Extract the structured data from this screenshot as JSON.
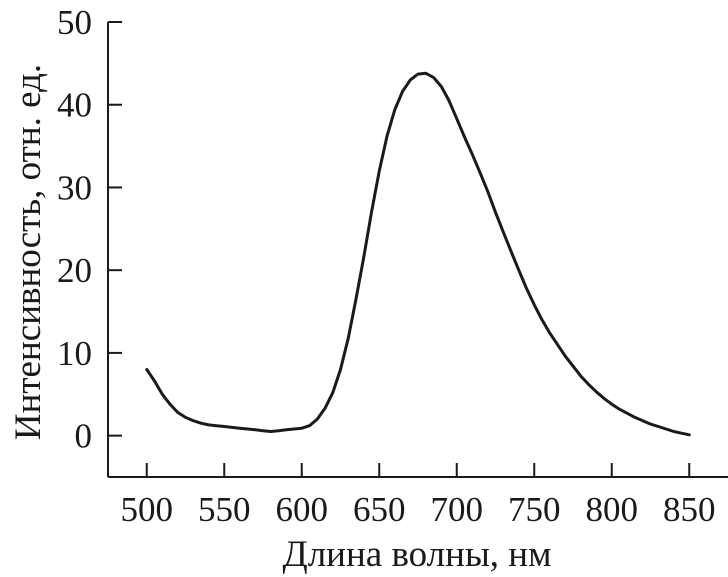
{
  "chart_data": {
    "type": "line",
    "title": "",
    "xlabel": "Длина волны, нм",
    "ylabel": "Интенсивность, отн. ед.",
    "xlim": [
      475,
      875
    ],
    "ylim": [
      -5,
      50
    ],
    "x_ticks": [
      500,
      550,
      600,
      650,
      700,
      750,
      800,
      850
    ],
    "y_ticks": [
      0,
      10,
      20,
      30,
      40,
      50
    ],
    "x_tick_labels": [
      "500",
      "550",
      "600",
      "650",
      "700",
      "750",
      "800",
      "850"
    ],
    "y_tick_labels": [
      "0",
      "10",
      "20",
      "30",
      "40",
      "50"
    ],
    "grid": false,
    "legend": "none",
    "colors": {
      "line": "#1a1a1a",
      "axis": "#1a1a1a"
    },
    "series": [
      {
        "x": [
          500,
          505,
          510,
          515,
          520,
          525,
          530,
          535,
          540,
          545,
          550,
          555,
          560,
          565,
          570,
          575,
          580,
          585,
          590,
          595,
          600,
          605,
          610,
          615,
          620,
          625,
          630,
          635,
          640,
          645,
          650,
          655,
          660,
          665,
          670,
          675,
          680,
          685,
          690,
          695,
          700,
          705,
          710,
          715,
          720,
          725,
          730,
          735,
          740,
          745,
          750,
          755,
          760,
          765,
          770,
          775,
          780,
          785,
          790,
          795,
          800,
          805,
          810,
          815,
          820,
          825,
          830,
          835,
          840,
          845,
          850
        ],
        "y": [
          8.0,
          6.6,
          5.0,
          3.8,
          2.8,
          2.2,
          1.8,
          1.5,
          1.3,
          1.2,
          1.1,
          1.0,
          0.9,
          0.8,
          0.7,
          0.6,
          0.5,
          0.6,
          0.7,
          0.8,
          0.9,
          1.2,
          2.0,
          3.3,
          5.2,
          8.0,
          11.8,
          16.5,
          21.6,
          27.0,
          32.0,
          36.2,
          39.4,
          41.6,
          43.0,
          43.7,
          43.8,
          43.3,
          42.2,
          40.5,
          38.3,
          36.1,
          34.0,
          31.8,
          29.5,
          27.0,
          24.6,
          22.3,
          20.0,
          17.8,
          15.8,
          14.0,
          12.4,
          11.0,
          9.6,
          8.4,
          7.2,
          6.2,
          5.3,
          4.5,
          3.8,
          3.2,
          2.7,
          2.2,
          1.8,
          1.4,
          1.1,
          0.8,
          0.5,
          0.3,
          0.1
        ]
      }
    ]
  }
}
